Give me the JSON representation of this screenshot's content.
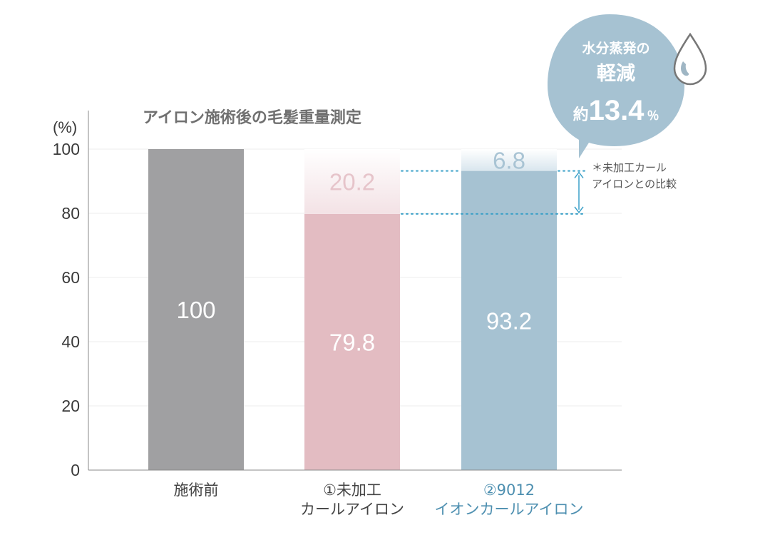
{
  "colors": {
    "bar_before": "#a0a0a2",
    "bar_untreated": "#e3bcc2",
    "bar_untreated_loss": "#f3e2e5",
    "bar_ion": "#a6c2d2",
    "bar_ion_loss": "#d9e6ee",
    "loss_untreated_text": "#e6c4ca",
    "loss_ion_text": "#a9c4d4",
    "category_ion_text": "#4d8fb0",
    "category_text": "#444444",
    "dotted_line": "#3ba0c8",
    "bubble": "#a6c2d2",
    "axis": "#8a8a8a",
    "grid": "#ececec"
  },
  "icons": {
    "drop": "water-drop-icon"
  },
  "chart_data": {
    "type": "bar",
    "stacked": true,
    "title": "アイロン施術後の毛髪重量測定",
    "ylabel": "(%)",
    "ylim": [
      0,
      100
    ],
    "yticks": [
      0,
      20,
      40,
      60,
      80,
      100
    ],
    "grid": true,
    "categories": [
      {
        "lines": [
          "施術前"
        ]
      },
      {
        "lines": [
          "①未加工",
          "カールアイロン"
        ]
      },
      {
        "lines": [
          "②9012",
          "イオンカールアイロン"
        ]
      }
    ],
    "bars": [
      {
        "value": 100,
        "value_label": "100",
        "loss": 0,
        "loss_label": ""
      },
      {
        "value": 79.8,
        "value_label": "79.8",
        "loss": 20.2,
        "loss_label": "20.2"
      },
      {
        "value": 93.2,
        "value_label": "93.2",
        "loss": 6.8,
        "loss_label": "6.8"
      }
    ],
    "comparison_note": [
      "＊未加工カール",
      "アイロンとの比較"
    ],
    "callout": {
      "line1": "水分蒸発の",
      "line2": "軽減",
      "prefix": "約",
      "value": "13.4",
      "unit": "％"
    }
  }
}
